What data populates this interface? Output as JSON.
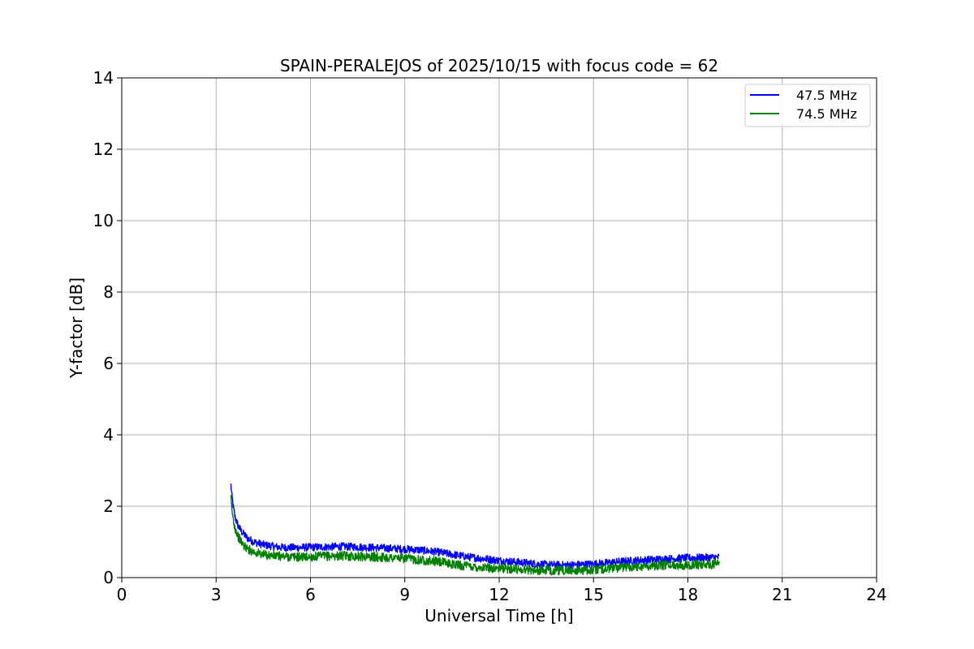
{
  "chart_data": {
    "type": "line",
    "title": "SPAIN-PERALEJOS of 2025/10/15 with focus code = 62",
    "xlabel": "Universal Time [h]",
    "ylabel": "Y-factor [dB]",
    "xlim": [
      0,
      24
    ],
    "ylim": [
      0,
      14
    ],
    "xticks": [
      0,
      3,
      6,
      9,
      12,
      15,
      18,
      21,
      24
    ],
    "yticks": [
      0,
      2,
      4,
      6,
      8,
      10,
      12,
      14
    ],
    "grid": true,
    "legend_position": "top-right",
    "series": [
      {
        "name": "47.5 MHz",
        "color": "#0000ff",
        "x": [
          3.47,
          3.5,
          3.55,
          3.6,
          3.7,
          3.8,
          3.9,
          4.0,
          4.2,
          4.5,
          5.0,
          5.5,
          6.0,
          6.5,
          7.0,
          7.5,
          8.0,
          8.5,
          9.0,
          9.5,
          10.0,
          10.5,
          11.0,
          11.5,
          12.0,
          12.5,
          13.0,
          13.5,
          14.0,
          14.5,
          15.0,
          15.5,
          16.0,
          16.5,
          17.0,
          17.5,
          18.0,
          18.5,
          19.0
        ],
        "values": [
          2.6,
          2.3,
          1.95,
          1.7,
          1.45,
          1.3,
          1.2,
          1.1,
          1.0,
          0.92,
          0.85,
          0.84,
          0.85,
          0.86,
          0.87,
          0.86,
          0.84,
          0.82,
          0.8,
          0.77,
          0.72,
          0.65,
          0.58,
          0.53,
          0.48,
          0.44,
          0.4,
          0.36,
          0.35,
          0.36,
          0.38,
          0.42,
          0.46,
          0.49,
          0.51,
          0.53,
          0.55,
          0.56,
          0.57
        ],
        "band": 0.11
      },
      {
        "name": "74.5 MHz",
        "color": "#008000",
        "x": [
          3.47,
          3.5,
          3.55,
          3.6,
          3.7,
          3.8,
          3.9,
          4.0,
          4.2,
          4.5,
          5.0,
          5.5,
          6.0,
          6.5,
          7.0,
          7.5,
          8.0,
          8.5,
          9.0,
          9.5,
          10.0,
          10.5,
          11.0,
          11.5,
          12.0,
          12.5,
          13.0,
          13.5,
          14.0,
          14.5,
          15.0,
          15.5,
          16.0,
          16.5,
          17.0,
          17.5,
          18.0,
          18.5,
          19.0
        ],
        "values": [
          2.2,
          1.9,
          1.6,
          1.4,
          1.15,
          1.0,
          0.88,
          0.8,
          0.72,
          0.64,
          0.6,
          0.58,
          0.58,
          0.6,
          0.61,
          0.6,
          0.58,
          0.56,
          0.54,
          0.5,
          0.45,
          0.38,
          0.32,
          0.28,
          0.26,
          0.24,
          0.22,
          0.2,
          0.2,
          0.21,
          0.22,
          0.26,
          0.3,
          0.32,
          0.34,
          0.35,
          0.36,
          0.37,
          0.38
        ],
        "band": 0.13
      }
    ]
  }
}
